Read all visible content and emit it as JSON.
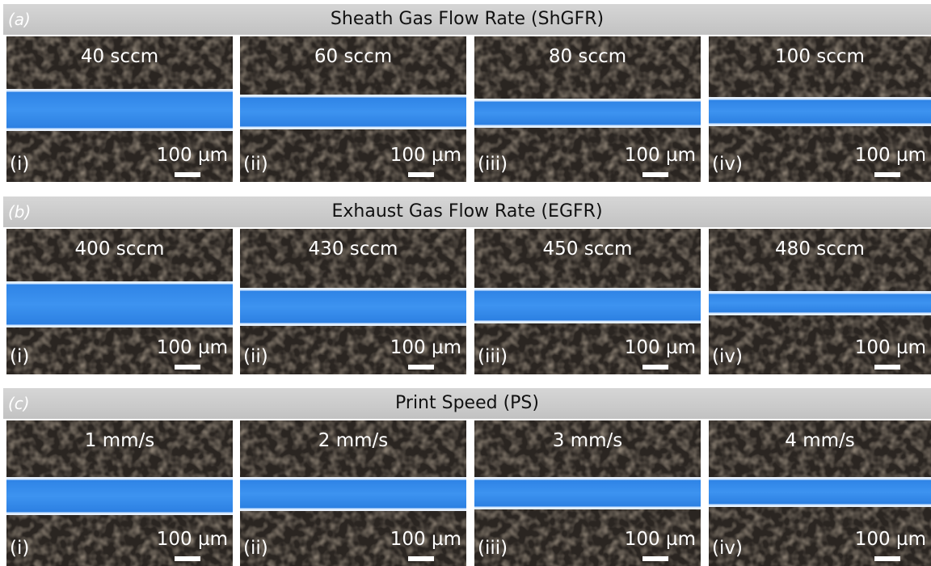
{
  "sections": [
    {
      "letter": "(a)",
      "title": "Sheath Gas Flow Rate (ShGFR)",
      "panels": [
        {
          "setting": "40 sccm",
          "index": "(i)",
          "scale": "100 µm"
        },
        {
          "setting": "60 sccm",
          "index": "(ii)",
          "scale": "100 µm"
        },
        {
          "setting": "80 sccm",
          "index": "(iii)",
          "scale": "100 µm"
        },
        {
          "setting": "100 sccm",
          "index": "(iv)",
          "scale": "100 µm"
        }
      ]
    },
    {
      "letter": "(b)",
      "title": "Exhaust Gas Flow Rate (EGFR)",
      "panels": [
        {
          "setting": "400 sccm",
          "index": "(i)",
          "scale": "100 µm"
        },
        {
          "setting": "430 sccm",
          "index": "(ii)",
          "scale": "100 µm"
        },
        {
          "setting": "450 sccm",
          "index": "(iii)",
          "scale": "100 µm"
        },
        {
          "setting": "480 sccm",
          "index": "(iv)",
          "scale": "100 µm"
        }
      ]
    },
    {
      "letter": "(c)",
      "title": "Print Speed (PS)",
      "panels": [
        {
          "setting": "1 mm/s",
          "index": "(i)",
          "scale": "100 µm"
        },
        {
          "setting": "2 mm/s",
          "index": "(ii)",
          "scale": "100 µm"
        },
        {
          "setting": "3 mm/s",
          "index": "(iii)",
          "scale": "100 µm"
        },
        {
          "setting": "4 mm/s",
          "index": "(iv)",
          "scale": "100 µm"
        }
      ]
    }
  ]
}
